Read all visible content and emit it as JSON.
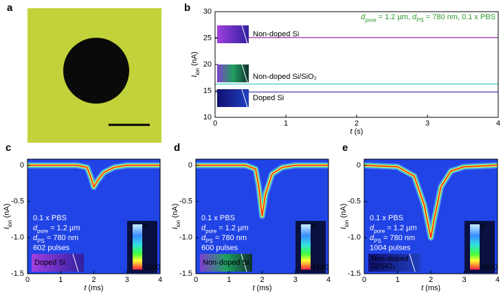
{
  "image_panel": {
    "label": "a"
  },
  "chart_data": [
    {
      "type": "line",
      "label": "b",
      "annotation": [
        {
          "text": "d",
          "italic": true
        },
        {
          "text": "pore",
          "sub": true
        },
        {
          "text": " = 1.2 µm, "
        },
        {
          "text": "d",
          "italic": true
        },
        {
          "text": "PS",
          "sub": true
        },
        {
          "text": " = 780 nm, 0.1 x PBS"
        }
      ],
      "xlabel": [
        {
          "text": "t",
          "italic": true
        },
        {
          "text": " (s)"
        }
      ],
      "ylabel": [
        {
          "text": "I",
          "italic": true
        },
        {
          "text": "ion",
          "sub": true
        },
        {
          "text": " (nA)"
        }
      ],
      "x": [
        0,
        0.5,
        1,
        1.5,
        2,
        2.5,
        3,
        3.5,
        4
      ],
      "series": [
        {
          "name": "Non-doped Si",
          "color": "#9b2fa8",
          "values": [
            25.1,
            25.1,
            25.1,
            25.1,
            25.1,
            25.1,
            25.1,
            25.1,
            25.1
          ]
        },
        {
          "name": "Non-doped Si/SiO₂",
          "color": "#3cc8c8",
          "values": [
            16.3,
            16.3,
            16.3,
            16.3,
            16.3,
            16.3,
            16.3,
            16.3,
            16.3
          ]
        },
        {
          "name": "Doped Si",
          "color": "#2a2aa0",
          "values": [
            14.8,
            14.8,
            14.8,
            14.8,
            14.8,
            14.8,
            14.8,
            14.8,
            14.8
          ]
        }
      ],
      "xlim": [
        0,
        4
      ],
      "ylim": [
        10,
        30
      ],
      "xticks": [
        0,
        1,
        2,
        3,
        4
      ],
      "yticks": [
        10,
        15,
        20,
        25,
        30
      ]
    },
    {
      "type": "density",
      "label": "c",
      "xlabel": [
        {
          "text": "t",
          "italic": true
        },
        {
          "text": " (ms)"
        }
      ],
      "ylabel": [
        {
          "text": "I",
          "italic": true
        },
        {
          "text": "ion",
          "sub": true
        },
        {
          "text": " (nA)"
        }
      ],
      "annotation": [
        [
          {
            "text": "0.1 x PBS"
          }
        ],
        [
          {
            "text": "d",
            "italic": true
          },
          {
            "text": "pore",
            "sub": true
          },
          {
            "text": " = 1.2 µm"
          }
        ],
        [
          {
            "text": "d",
            "italic": true
          },
          {
            "text": "PS",
            "sub": true
          },
          {
            "text": " = 780 nm"
          }
        ],
        [
          {
            "text": "602 pulses"
          }
        ]
      ],
      "inset": [
        "Doped Si"
      ],
      "x": [
        0,
        1.5,
        1.8,
        1.9,
        2.0,
        2.1,
        2.3,
        2.6,
        3,
        4
      ],
      "values": [
        0,
        0,
        -0.03,
        -0.15,
        -0.3,
        -0.22,
        -0.1,
        -0.03,
        0,
        0
      ],
      "clim": [
        0,
        1500
      ],
      "xlim": [
        0,
        4
      ],
      "ylim": [
        -1.5,
        0.085
      ],
      "xticks": [
        0,
        1,
        2,
        3,
        4
      ],
      "yticks": [
        0,
        -0.5,
        {
          "value": -1,
          "label": "-1.0"
        },
        -1.5
      ]
    },
    {
      "type": "density",
      "label": "d",
      "xlabel": [
        {
          "text": "t",
          "italic": true
        },
        {
          "text": " (ms)"
        }
      ],
      "ylabel": [
        {
          "text": "I",
          "italic": true
        },
        {
          "text": "ion",
          "sub": true
        },
        {
          "text": " (nA)"
        }
      ],
      "annotation": [
        [
          {
            "text": "0.1 x PBS"
          }
        ],
        [
          {
            "text": "d",
            "italic": true
          },
          {
            "text": "pore",
            "sub": true
          },
          {
            "text": " = 1.2 µm"
          }
        ],
        [
          {
            "text": "d",
            "italic": true
          },
          {
            "text": "PS",
            "sub": true
          },
          {
            "text": " = 780 nm"
          }
        ],
        [
          {
            "text": "600 pulses"
          }
        ]
      ],
      "inset": [
        "Non-doped Si"
      ],
      "x": [
        0,
        1.5,
        1.8,
        1.9,
        2.0,
        2.1,
        2.3,
        2.6,
        3,
        4
      ],
      "values": [
        0,
        0,
        -0.05,
        -0.3,
        -0.7,
        -0.4,
        -0.12,
        -0.03,
        0,
        0
      ],
      "clim": [
        0,
        1500
      ],
      "xlim": [
        0,
        4
      ],
      "ylim": [
        -1.5,
        0.085
      ],
      "xticks": [
        0,
        1,
        2,
        3,
        4
      ],
      "yticks": [
        0,
        -0.5,
        {
          "value": -1,
          "label": "-1.0"
        },
        -1.5
      ]
    },
    {
      "type": "density",
      "label": "e",
      "xlabel": [
        {
          "text": "t",
          "italic": true
        },
        {
          "text": " (ms)"
        }
      ],
      "ylabel": [
        {
          "text": "I",
          "italic": true
        },
        {
          "text": "ion",
          "sub": true
        },
        {
          "text": " (nA)"
        }
      ],
      "annotation": [
        [
          {
            "text": "0.1 x PBS"
          }
        ],
        [
          {
            "text": "d",
            "italic": true
          },
          {
            "text": "pore",
            "sub": true
          },
          {
            "text": " = 1.2 µm"
          }
        ],
        [
          {
            "text": "d",
            "italic": true
          },
          {
            "text": "PS",
            "sub": true
          },
          {
            "text": " = 780 nm"
          }
        ],
        [
          {
            "text": "1004 pulses"
          }
        ]
      ],
      "inset": [
        "Non-doped",
        "Si/SiO₂"
      ],
      "x": [
        0,
        1,
        1.5,
        1.8,
        2.0,
        2.1,
        2.3,
        2.6,
        3,
        4
      ],
      "values": [
        0,
        -0.02,
        -0.15,
        -0.55,
        -1.0,
        -0.75,
        -0.3,
        -0.08,
        -0.02,
        0
      ],
      "clim": [
        0,
        1500
      ],
      "xlim": [
        0,
        4
      ],
      "ylim": [
        -1.5,
        0.085
      ],
      "xticks": [
        0,
        1,
        2,
        3,
        4
      ],
      "yticks": [
        0,
        -0.5,
        {
          "value": -1,
          "label": "-1.0"
        },
        -1.5
      ]
    }
  ]
}
